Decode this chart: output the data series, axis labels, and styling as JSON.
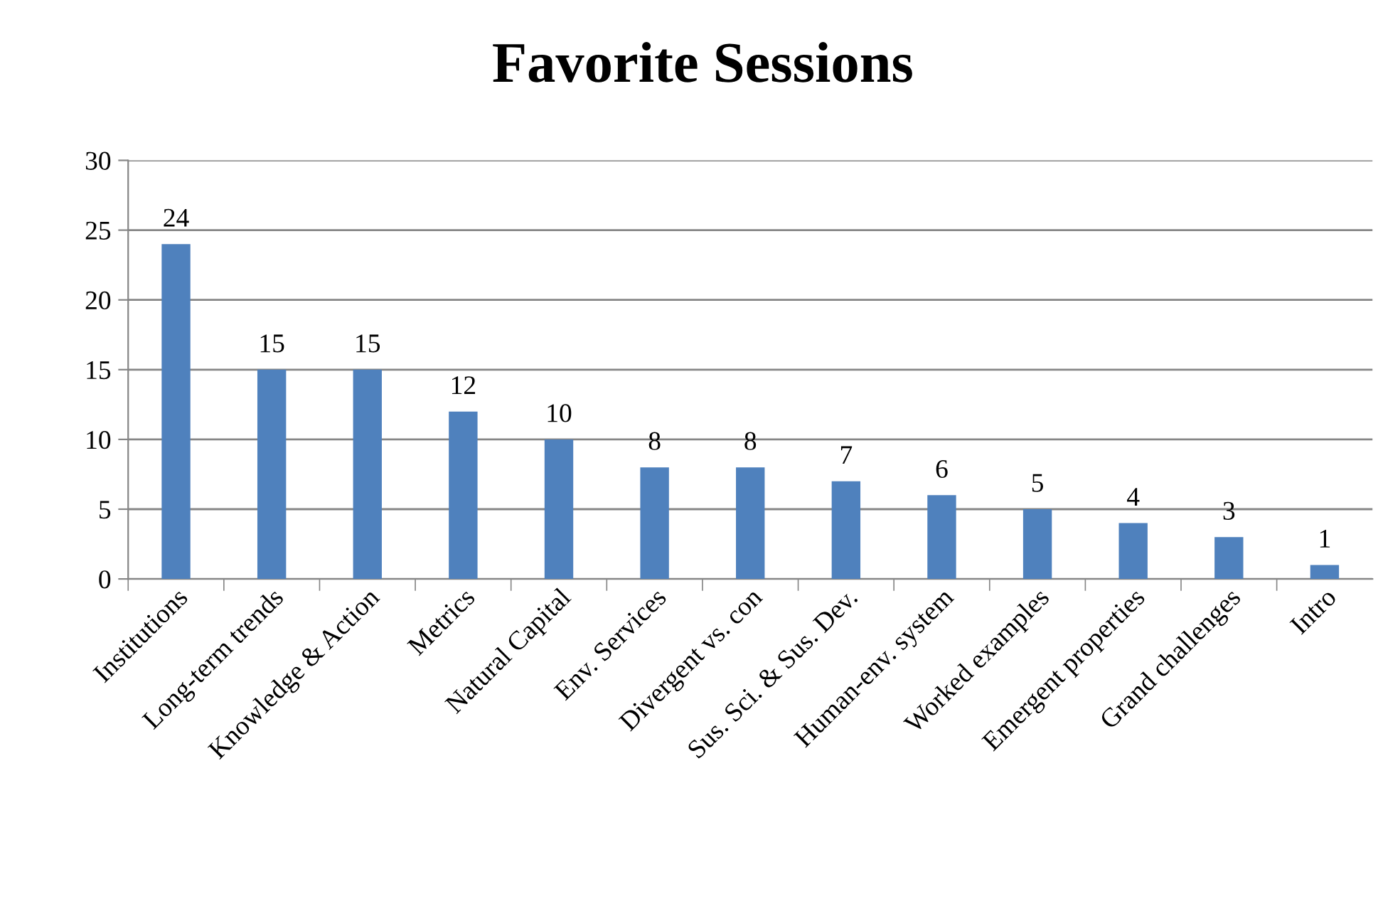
{
  "chart_data": {
    "type": "bar",
    "title": "Favorite Sessions",
    "categories": [
      "Institutions",
      "Long-term trends",
      "Knowledge & Action",
      "Metrics",
      "Natural Capital",
      "Env. Services",
      "Divergent vs. con",
      "Sus. Sci. & Sus. Dev.",
      "Human-env. system",
      "Worked examples",
      "Emergent properties",
      "Grand challenges",
      "Intro"
    ],
    "values": [
      24,
      15,
      15,
      12,
      10,
      8,
      8,
      7,
      6,
      5,
      4,
      3,
      1
    ],
    "color": "#4f81bd",
    "ylim": [
      0,
      30
    ],
    "yticks": [
      0,
      5,
      10,
      15,
      20,
      25,
      30
    ],
    "grid": "y",
    "data_labels": true,
    "legend": false
  }
}
